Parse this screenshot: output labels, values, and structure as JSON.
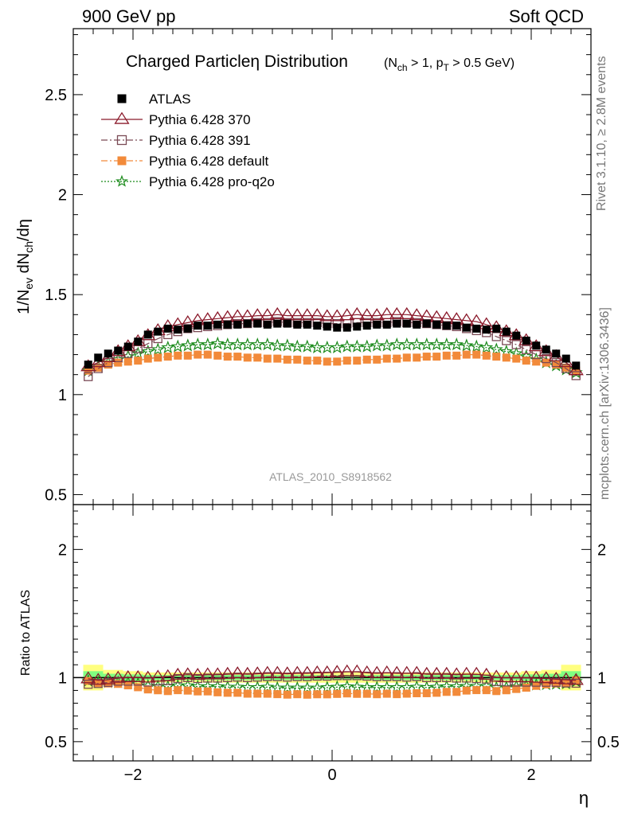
{
  "header": {
    "left": "900 GeV pp",
    "right": "Soft QCD"
  },
  "side_labels": {
    "top": "Rivet 3.1.10, ≥ 2.8M events",
    "bottom": "mcplots.cern.ch [arXiv:1306.3436]"
  },
  "chart_data": {
    "type": "scatter",
    "title": "Charged Particleη Distribution",
    "title_qualifier": "(N_ch > 1, p_T > 0.5 GeV)",
    "analysis_label": "ATLAS_2010_S8918562",
    "xlabel": "η",
    "ylabel_main": "1/N_ev dN_ch/dη",
    "ylabel_ratio": "Ratio to ATLAS",
    "xlim": [
      -2.6,
      2.6
    ],
    "ylim_main": [
      0.45,
      2.83
    ],
    "ylim_ratio": [
      0.35,
      2.35
    ],
    "main_ticks": [
      "0.5",
      "1",
      "1.5",
      "2",
      "2.5"
    ],
    "ratio_ticks": [
      "0.5",
      "1",
      "2"
    ],
    "x_ticks": [
      "−2",
      "0",
      "2"
    ],
    "legend_position": "top-left",
    "x": [
      -2.45,
      -2.35,
      -2.25,
      -2.15,
      -2.05,
      -1.95,
      -1.85,
      -1.75,
      -1.65,
      -1.55,
      -1.45,
      -1.35,
      -1.25,
      -1.15,
      -1.05,
      -0.95,
      -0.85,
      -0.75,
      -0.65,
      -0.55,
      -0.45,
      -0.35,
      -0.25,
      -0.15,
      -0.05,
      0.05,
      0.15,
      0.25,
      0.35,
      0.45,
      0.55,
      0.65,
      0.75,
      0.85,
      0.95,
      1.05,
      1.15,
      1.25,
      1.35,
      1.45,
      1.55,
      1.65,
      1.75,
      1.85,
      1.95,
      2.05,
      2.15,
      2.25,
      2.35,
      2.45
    ],
    "series": [
      {
        "name": "ATLAS",
        "color": "#000000",
        "marker": "square-filled",
        "line": "none",
        "values": [
          1.15,
          1.185,
          1.205,
          1.22,
          1.24,
          1.265,
          1.3,
          1.315,
          1.33,
          1.325,
          1.33,
          1.345,
          1.345,
          1.35,
          1.35,
          1.35,
          1.355,
          1.355,
          1.35,
          1.355,
          1.355,
          1.35,
          1.35,
          1.345,
          1.34,
          1.335,
          1.335,
          1.34,
          1.345,
          1.35,
          1.35,
          1.355,
          1.355,
          1.35,
          1.355,
          1.35,
          1.345,
          1.345,
          1.335,
          1.33,
          1.325,
          1.33,
          1.315,
          1.295,
          1.27,
          1.245,
          1.225,
          1.205,
          1.18,
          1.145
        ]
      },
      {
        "name": "Pythia 6.428 370",
        "color": "#8b1a2b",
        "marker": "triangle-open",
        "line": "solid",
        "values": [
          1.14,
          1.16,
          1.185,
          1.215,
          1.24,
          1.265,
          1.295,
          1.32,
          1.34,
          1.35,
          1.36,
          1.37,
          1.375,
          1.38,
          1.385,
          1.39,
          1.39,
          1.395,
          1.395,
          1.4,
          1.395,
          1.395,
          1.395,
          1.395,
          1.39,
          1.39,
          1.395,
          1.4,
          1.395,
          1.395,
          1.4,
          1.4,
          1.4,
          1.395,
          1.39,
          1.385,
          1.38,
          1.375,
          1.37,
          1.365,
          1.35,
          1.335,
          1.315,
          1.295,
          1.27,
          1.24,
          1.215,
          1.19,
          1.16,
          1.12
        ]
      },
      {
        "name": "Pythia 6.428 391",
        "color": "#7a4a55",
        "marker": "square-open",
        "line": "dashdot",
        "values": [
          1.09,
          1.13,
          1.16,
          1.185,
          1.205,
          1.23,
          1.255,
          1.28,
          1.3,
          1.315,
          1.33,
          1.335,
          1.34,
          1.345,
          1.35,
          1.355,
          1.355,
          1.36,
          1.36,
          1.365,
          1.36,
          1.36,
          1.36,
          1.36,
          1.355,
          1.355,
          1.355,
          1.36,
          1.36,
          1.36,
          1.36,
          1.365,
          1.36,
          1.36,
          1.355,
          1.35,
          1.345,
          1.34,
          1.33,
          1.32,
          1.31,
          1.29,
          1.27,
          1.25,
          1.225,
          1.2,
          1.18,
          1.16,
          1.13,
          1.095
        ]
      },
      {
        "name": "Pythia 6.428 default",
        "color": "#f28a3a",
        "marker": "square-filled",
        "line": "dashdot",
        "values": [
          1.12,
          1.135,
          1.15,
          1.16,
          1.165,
          1.17,
          1.18,
          1.185,
          1.19,
          1.195,
          1.195,
          1.2,
          1.2,
          1.195,
          1.19,
          1.19,
          1.185,
          1.185,
          1.18,
          1.18,
          1.175,
          1.175,
          1.17,
          1.17,
          1.165,
          1.165,
          1.17,
          1.17,
          1.175,
          1.175,
          1.18,
          1.18,
          1.185,
          1.185,
          1.19,
          1.19,
          1.195,
          1.195,
          1.2,
          1.2,
          1.195,
          1.19,
          1.185,
          1.18,
          1.17,
          1.165,
          1.16,
          1.15,
          1.135,
          1.12
        ]
      },
      {
        "name": "Pythia 6.428 pro-q2o",
        "color": "#1a8a1a",
        "marker": "star-open",
        "line": "dotted",
        "values": [
          1.12,
          1.14,
          1.16,
          1.175,
          1.19,
          1.205,
          1.215,
          1.225,
          1.235,
          1.24,
          1.245,
          1.25,
          1.25,
          1.255,
          1.25,
          1.25,
          1.25,
          1.25,
          1.25,
          1.245,
          1.245,
          1.24,
          1.24,
          1.235,
          1.235,
          1.235,
          1.24,
          1.24,
          1.24,
          1.245,
          1.245,
          1.25,
          1.25,
          1.25,
          1.25,
          1.25,
          1.25,
          1.25,
          1.245,
          1.24,
          1.235,
          1.225,
          1.215,
          1.205,
          1.19,
          1.175,
          1.16,
          1.145,
          1.125,
          1.11
        ]
      }
    ],
    "ratio_bands": {
      "yellow_halfwidth": [
        0.1,
        0.1,
        0.06,
        0.06,
        0.05,
        0.05,
        0.04,
        0.04,
        0.04,
        0.04,
        0.04,
        0.04,
        0.04,
        0.04,
        0.04,
        0.04,
        0.04,
        0.04,
        0.04,
        0.04,
        0.04,
        0.04,
        0.04,
        0.04,
        0.04,
        0.04,
        0.04,
        0.04,
        0.04,
        0.04,
        0.04,
        0.04,
        0.04,
        0.04,
        0.04,
        0.04,
        0.04,
        0.04,
        0.04,
        0.04,
        0.04,
        0.04,
        0.04,
        0.04,
        0.05,
        0.05,
        0.06,
        0.06,
        0.1,
        0.1
      ],
      "green_halfwidth": [
        0.05,
        0.05,
        0.03,
        0.03,
        0.025,
        0.025,
        0.02,
        0.02,
        0.02,
        0.02,
        0.02,
        0.02,
        0.02,
        0.02,
        0.02,
        0.02,
        0.02,
        0.02,
        0.02,
        0.02,
        0.02,
        0.02,
        0.02,
        0.02,
        0.02,
        0.02,
        0.02,
        0.02,
        0.02,
        0.02,
        0.02,
        0.02,
        0.02,
        0.02,
        0.02,
        0.02,
        0.02,
        0.02,
        0.02,
        0.02,
        0.02,
        0.02,
        0.02,
        0.02,
        0.025,
        0.025,
        0.03,
        0.03,
        0.05,
        0.05
      ],
      "yellow_color": "#ffff80",
      "green_color": "#80ff80"
    }
  }
}
